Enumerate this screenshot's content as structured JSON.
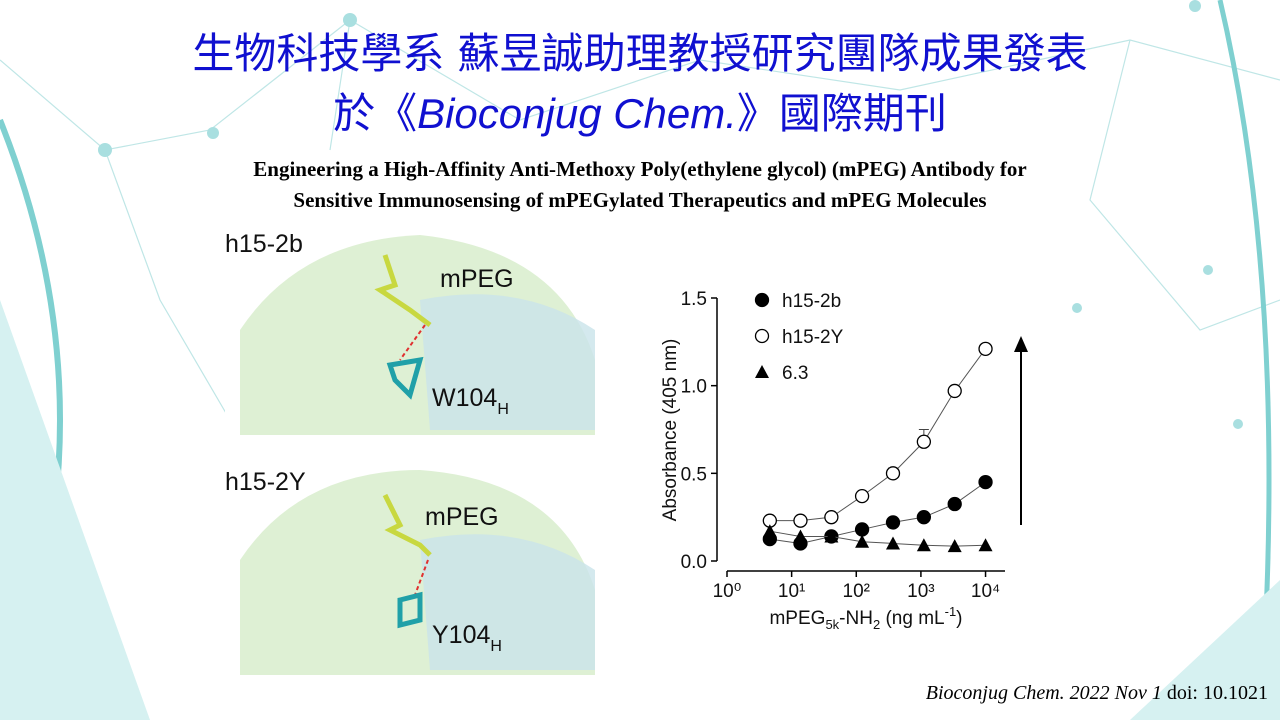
{
  "title": {
    "line1": "生物科技學系 蘇昱誠助理教授研究團隊成果發表",
    "line2_before": "於《",
    "line2_journal": "Bioconjug Chem.",
    "line2_after": "》國際期刊"
  },
  "subtitle": {
    "line1": "Engineering a High-Affinity Anti-Methoxy Poly(ethylene glycol) (mPEG) Antibody for",
    "line2": "Sensitive Immunosensing of mPEGylated Therapeutics and mPEG Molecules"
  },
  "structures": [
    {
      "label": "h15-2b",
      "ligand": "mPEG",
      "residue": "W104",
      "subscript": "H"
    },
    {
      "label": "h15-2Y",
      "ligand": "mPEG",
      "residue": "Y104",
      "subscript": "H"
    }
  ],
  "chart_data": {
    "type": "scatter",
    "y_label": "Absorbance (405 nm)",
    "x_label": [
      "mPEG",
      "5k",
      "-NH",
      "2",
      " (ng mL",
      "-1",
      ")"
    ],
    "x": [
      4.6,
      13.7,
      41.2,
      123,
      370,
      1111,
      3333,
      10000
    ],
    "log_x": true,
    "xlim": [
      1,
      20000
    ],
    "xticks": [
      {
        "value": 1,
        "label": "10⁰"
      },
      {
        "value": 10,
        "label": "10¹"
      },
      {
        "value": 100,
        "label": "10²"
      },
      {
        "value": 1000,
        "label": "10³"
      },
      {
        "value": 10000,
        "label": "10⁴"
      }
    ],
    "ylim": [
      0,
      1.5
    ],
    "yticks": [
      {
        "value": 0,
        "label": "0.0"
      },
      0.5,
      {
        "value": 1,
        "label": "1.0"
      },
      1.5
    ],
    "series": [
      {
        "name": "h15-2b",
        "color": "#000000",
        "marker": "circle-filled",
        "values": [
          0.125,
          0.1,
          0.14,
          0.18,
          0.22,
          0.25,
          0.325,
          0.45
        ]
      },
      {
        "name": "h15-2Y",
        "color": "#000000",
        "marker": "circle-open",
        "values": [
          0.23,
          0.23,
          0.25,
          0.37,
          0.5,
          0.68,
          0.97,
          1.21
        ],
        "errors": [
          0,
          0,
          0,
          0,
          0.03,
          0.07,
          0,
          0
        ]
      },
      {
        "name": "6.3",
        "color": "#000000",
        "marker": "triangle",
        "values": [
          0.17,
          0.14,
          0.14,
          0.11,
          0.1,
          0.09,
          0.085,
          0.09
        ]
      }
    ],
    "legend": "upper-left"
  },
  "citation": {
    "journal": "Bioconjug Chem.",
    "date": "2022 Nov 1",
    "doi": "doi: 10.1021"
  }
}
